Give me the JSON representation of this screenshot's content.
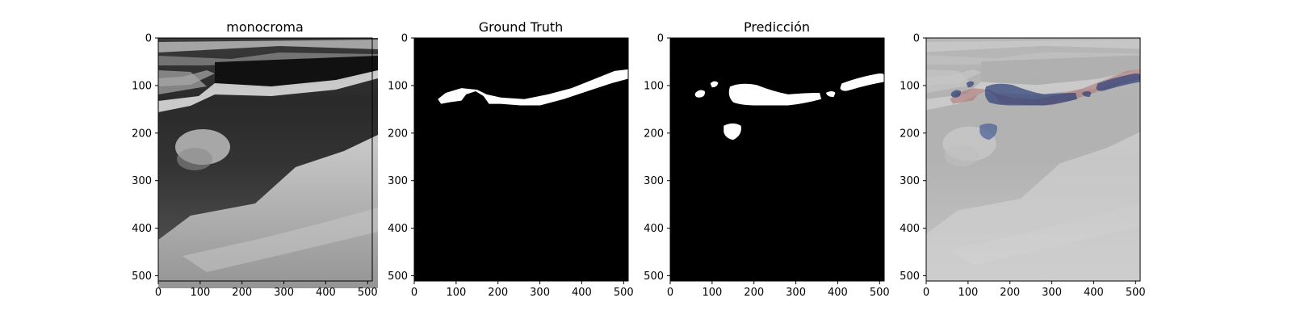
{
  "panels": [
    {
      "title": "monocroma"
    },
    {
      "title": "Ground Truth"
    },
    {
      "title": "Predicción"
    },
    {
      "title": ""
    }
  ],
  "axes": {
    "x_ticks": [
      "0",
      "100",
      "200",
      "300",
      "400",
      "500"
    ],
    "y_ticks": [
      "0",
      "100",
      "200",
      "300",
      "400",
      "500"
    ],
    "x_range": [
      0,
      511
    ],
    "y_range": [
      0,
      511
    ]
  },
  "colors": {
    "mask_foreground": "#ffffff",
    "mask_background": "#000000",
    "overlay_prediction": "#2b3f78",
    "overlay_ground_truth": "#b07070"
  }
}
